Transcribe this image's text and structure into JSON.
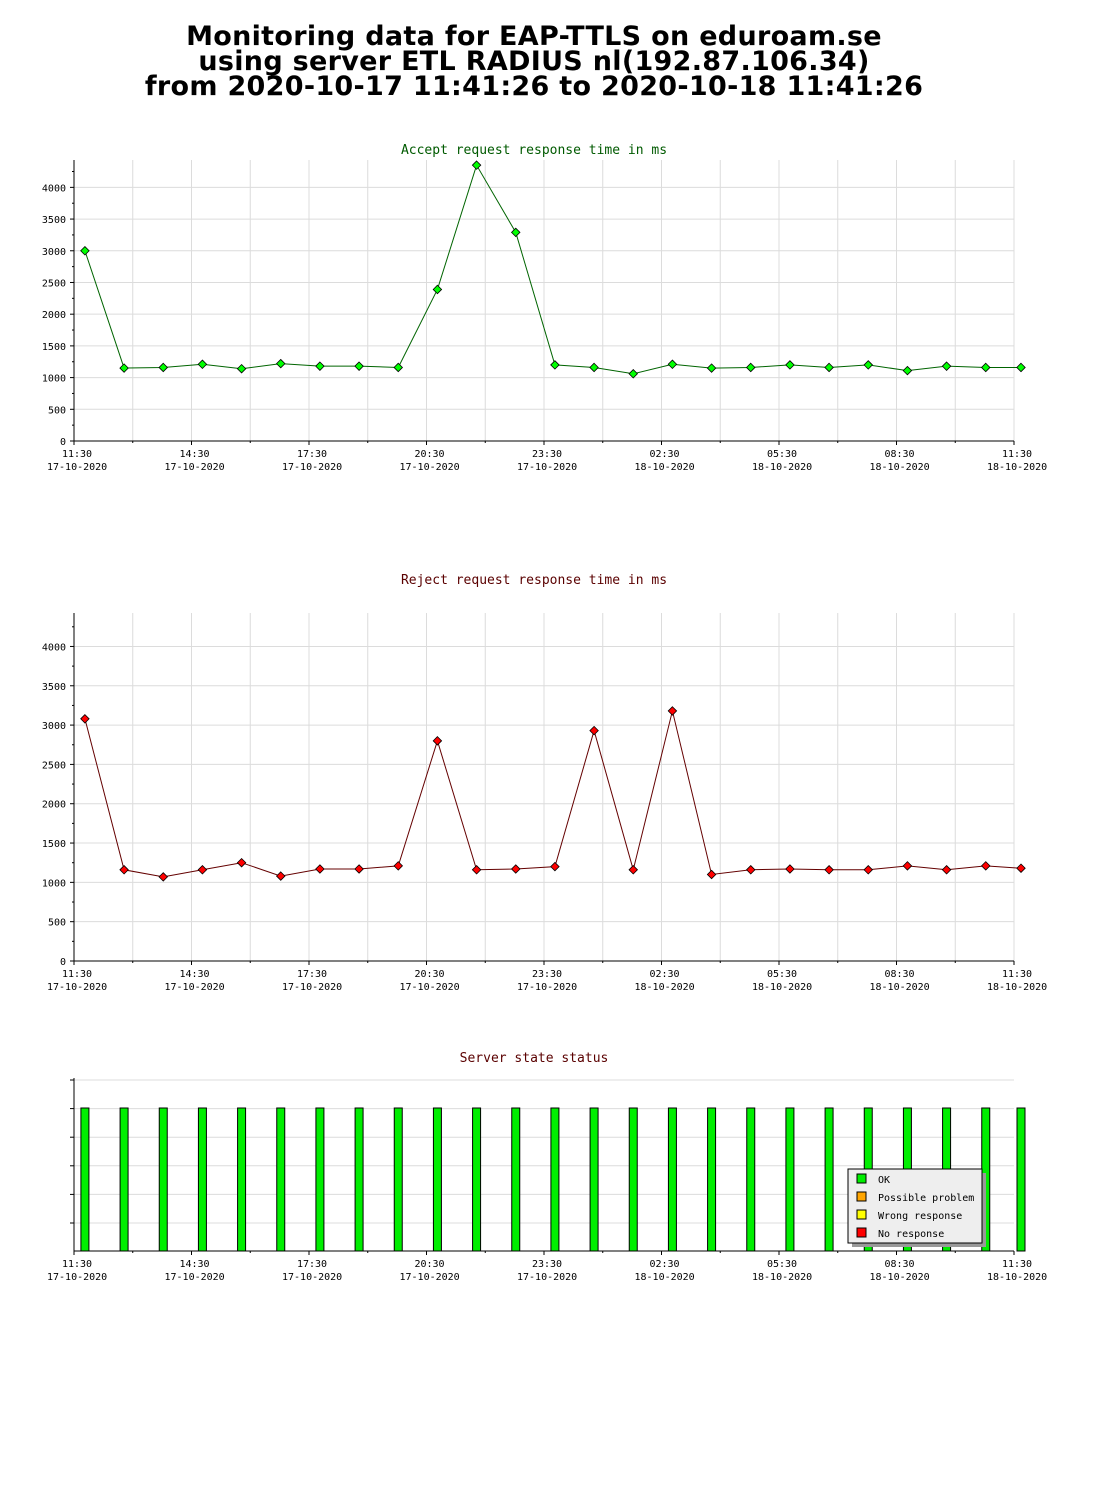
{
  "page": {
    "title_lines": [
      "Monitoring data for EAP-TTLS on eduroam.se",
      "using server ETL RADIUS nl(192.87.106.34)",
      "from 2020-10-17 11:41:26 to 2020-10-18 11:41:26"
    ]
  },
  "colors": {
    "accept_marker": "#00ff00",
    "accept_line": "#006400",
    "accept_title": "#005a00",
    "reject_marker": "#ff0000",
    "reject_line": "#640000",
    "reject_title": "#5a0000",
    "grid": "#dcdcdc",
    "ok": "#00ee00",
    "possible_problem": "#ffa500",
    "wrong_response": "#ffff00",
    "no_response": "#ff0000"
  },
  "chart_data": [
    {
      "type": "line",
      "title": "Accept request response time in ms",
      "ylim": [
        0,
        4400
      ],
      "yticks": [
        0,
        500,
        1000,
        1500,
        2000,
        2500,
        3000,
        3500,
        4000
      ],
      "xticks": [
        {
          "time": "11:30",
          "date": "17-10-2020"
        },
        {
          "time": "14:30",
          "date": "17-10-2020"
        },
        {
          "time": "17:30",
          "date": "17-10-2020"
        },
        {
          "time": "20:30",
          "date": "17-10-2020"
        },
        {
          "time": "23:30",
          "date": "17-10-2020"
        },
        {
          "time": "02:30",
          "date": "18-10-2020"
        },
        {
          "time": "05:30",
          "date": "18-10-2020"
        },
        {
          "time": "08:30",
          "date": "18-10-2020"
        },
        {
          "time": "11:30",
          "date": "18-10-2020"
        }
      ],
      "x_hours": [
        0.1,
        1.1,
        2.1,
        3.1,
        4.1,
        5.1,
        6.1,
        7.1,
        8.1,
        9.1,
        10.1,
        11.1,
        12.1,
        13.1,
        14.1,
        15.1,
        16.1,
        17.1,
        18.1,
        19.1,
        20.1,
        21.1,
        22.1,
        23.1,
        24.0
      ],
      "values": [
        3000,
        1150,
        1160,
        1210,
        1140,
        1220,
        1180,
        1180,
        1160,
        2390,
        4350,
        3290,
        1200,
        1160,
        1060,
        1210,
        1150,
        1160,
        1200,
        1160,
        1200,
        1110,
        1180,
        1160,
        1160
      ],
      "grid": true
    },
    {
      "type": "line",
      "title": "Reject request response time in ms",
      "ylim": [
        0,
        4400
      ],
      "yticks": [
        0,
        500,
        1000,
        1500,
        2000,
        2500,
        3000,
        3500,
        4000
      ],
      "xticks": [
        {
          "time": "11:30",
          "date": "17-10-2020"
        },
        {
          "time": "14:30",
          "date": "17-10-2020"
        },
        {
          "time": "17:30",
          "date": "17-10-2020"
        },
        {
          "time": "20:30",
          "date": "17-10-2020"
        },
        {
          "time": "23:30",
          "date": "17-10-2020"
        },
        {
          "time": "02:30",
          "date": "18-10-2020"
        },
        {
          "time": "05:30",
          "date": "18-10-2020"
        },
        {
          "time": "08:30",
          "date": "18-10-2020"
        },
        {
          "time": "11:30",
          "date": "18-10-2020"
        }
      ],
      "x_hours": [
        0.1,
        1.1,
        2.1,
        3.1,
        4.1,
        5.1,
        6.1,
        7.1,
        8.1,
        9.1,
        10.1,
        11.1,
        12.1,
        13.1,
        14.1,
        15.1,
        16.1,
        17.1,
        18.1,
        19.1,
        20.1,
        21.1,
        22.1,
        23.1,
        24.0
      ],
      "values": [
        3080,
        1160,
        1070,
        1160,
        1250,
        1080,
        1170,
        1170,
        1210,
        2800,
        1160,
        1170,
        1200,
        2930,
        1160,
        3180,
        1100,
        1160,
        1170,
        1160,
        1160,
        1210,
        1160,
        1210,
        1180
      ],
      "grid": true
    },
    {
      "type": "bar",
      "title": "Server state status",
      "xticks": [
        {
          "time": "11:30",
          "date": "17-10-2020"
        },
        {
          "time": "14:30",
          "date": "17-10-2020"
        },
        {
          "time": "17:30",
          "date": "17-10-2020"
        },
        {
          "time": "20:30",
          "date": "17-10-2020"
        },
        {
          "time": "23:30",
          "date": "17-10-2020"
        },
        {
          "time": "02:30",
          "date": "18-10-2020"
        },
        {
          "time": "05:30",
          "date": "18-10-2020"
        },
        {
          "time": "08:30",
          "date": "18-10-2020"
        },
        {
          "time": "11:30",
          "date": "18-10-2020"
        }
      ],
      "x_hours": [
        0.1,
        1.1,
        2.1,
        3.1,
        4.1,
        5.1,
        6.1,
        7.1,
        8.1,
        9.1,
        10.1,
        11.1,
        12.1,
        13.1,
        14.1,
        15.1,
        16.1,
        17.1,
        18.1,
        19.1,
        20.1,
        21.1,
        22.1,
        23.1,
        24.0
      ],
      "states": [
        "OK",
        "OK",
        "OK",
        "OK",
        "OK",
        "OK",
        "OK",
        "OK",
        "OK",
        "OK",
        "OK",
        "OK",
        "OK",
        "OK",
        "OK",
        "OK",
        "OK",
        "OK",
        "OK",
        "OK",
        "OK",
        "OK",
        "OK",
        "OK",
        "OK"
      ],
      "legend": {
        "placement": "bottom-right",
        "entries": [
          {
            "label": "OK",
            "color_key": "ok"
          },
          {
            "label": "Possible problem",
            "color_key": "possible_problem"
          },
          {
            "label": "Wrong response",
            "color_key": "wrong_response"
          },
          {
            "label": "No response",
            "color_key": "no_response"
          }
        ]
      }
    }
  ]
}
